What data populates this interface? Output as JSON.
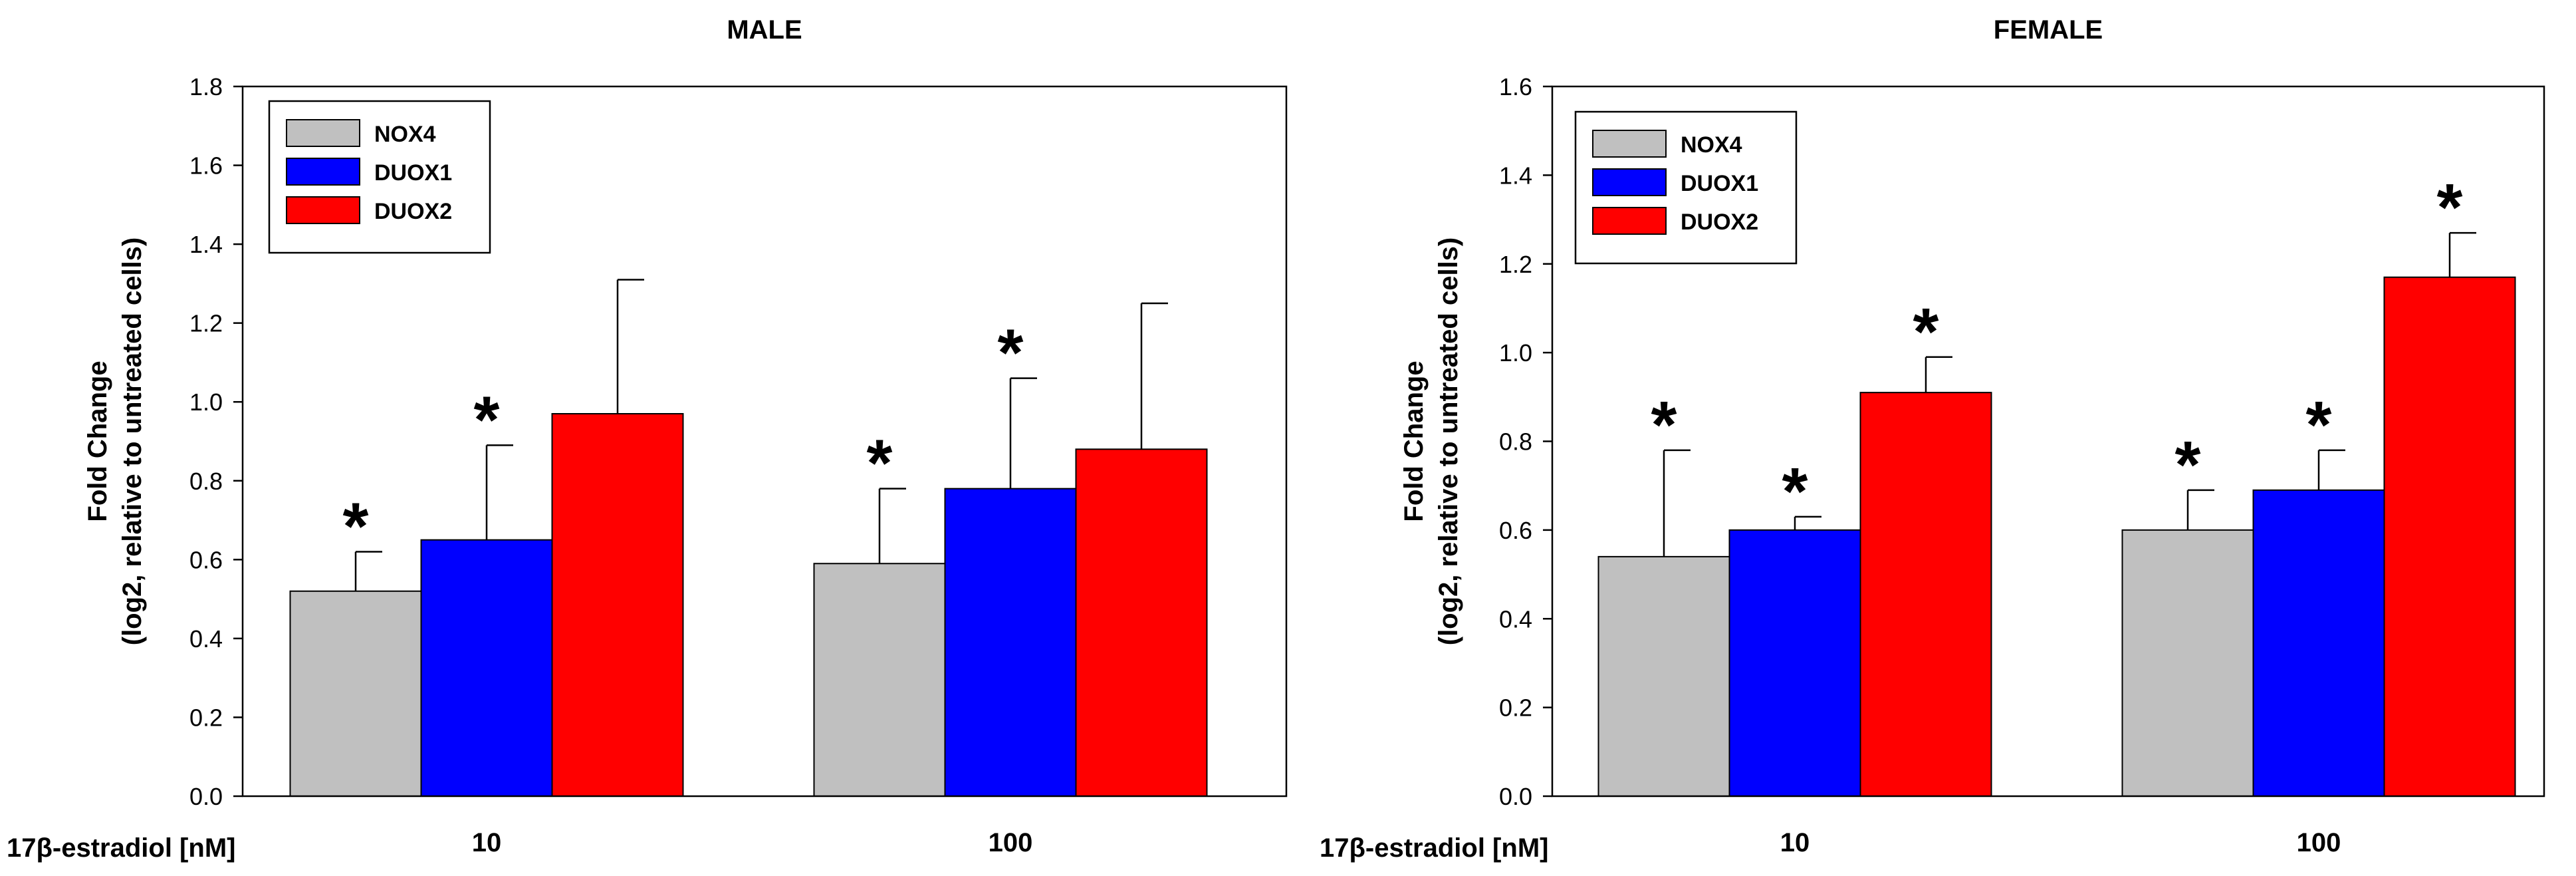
{
  "figure": {
    "xaxis_prefix_label": "17β-estradiol [nM]"
  },
  "chart_data": [
    {
      "type": "bar",
      "title": "MALE",
      "xlabel": "17β-estradiol [nM]",
      "ylabel_line1": "Fold Change",
      "ylabel_line2": "(log2, relative to untreated cells)",
      "ylim": [
        0,
        1.8
      ],
      "yticks": [
        "0.0",
        "0.2",
        "0.4",
        "0.6",
        "0.8",
        "1.0",
        "1.2",
        "1.4",
        "1.6",
        "1.8"
      ],
      "categories": [
        "10",
        "100"
      ],
      "legend_position": "top-left",
      "series": [
        {
          "name": "NOX4",
          "color": "#c0c0c0",
          "values": [
            0.52,
            0.59
          ],
          "errors": [
            0.1,
            0.19
          ],
          "significant": [
            true,
            true
          ]
        },
        {
          "name": "DUOX1",
          "color": "#0000ff",
          "values": [
            0.65,
            0.78
          ],
          "errors": [
            0.24,
            0.28
          ],
          "significant": [
            true,
            true
          ]
        },
        {
          "name": "DUOX2",
          "color": "#ff0000",
          "values": [
            0.97,
            0.88
          ],
          "errors": [
            0.34,
            0.37
          ],
          "significant": [
            false,
            false
          ]
        }
      ],
      "significance_marker": "*"
    },
    {
      "type": "bar",
      "title": "FEMALE",
      "xlabel": "17β-estradiol [nM]",
      "ylabel_line1": "Fold Change",
      "ylabel_line2": "(log2, relative to untreated cells)",
      "ylim": [
        0,
        1.6
      ],
      "yticks": [
        "0.0",
        "0.2",
        "0.4",
        "0.6",
        "0.8",
        "1.0",
        "1.2",
        "1.4",
        "1.6"
      ],
      "categories": [
        "10",
        "100"
      ],
      "legend_position": "top-left",
      "series": [
        {
          "name": "NOX4",
          "color": "#c0c0c0",
          "values": [
            0.54,
            0.6
          ],
          "errors": [
            0.24,
            0.09
          ],
          "significant": [
            true,
            true
          ]
        },
        {
          "name": "DUOX1",
          "color": "#0000ff",
          "values": [
            0.6,
            0.69
          ],
          "errors": [
            0.03,
            0.09
          ],
          "significant": [
            true,
            true
          ]
        },
        {
          "name": "DUOX2",
          "color": "#ff0000",
          "values": [
            0.91,
            1.17
          ],
          "errors": [
            0.08,
            0.1
          ],
          "significant": [
            true,
            true
          ]
        }
      ],
      "significance_marker": "*"
    }
  ]
}
